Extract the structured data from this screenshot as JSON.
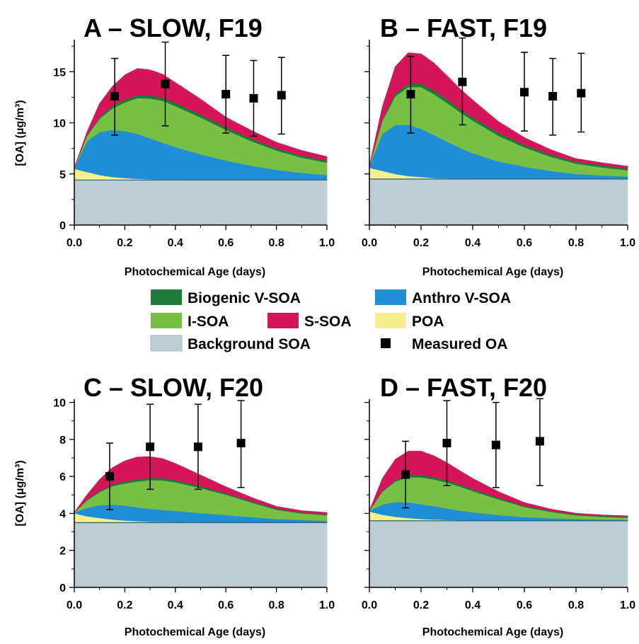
{
  "legend": {
    "items": [
      {
        "label": "Biogenic V-SOA",
        "color": "#1e7a3a",
        "kind": "patch"
      },
      {
        "label": "Anthro V-SOA",
        "color": "#1f8ed6",
        "kind": "patch"
      },
      {
        "label": "I-SOA",
        "color": "#77c043",
        "kind": "patch"
      },
      {
        "label": "S-SOA",
        "color": "#d5145a",
        "kind": "patch"
      },
      {
        "label": "POA",
        "color": "#f5ef8e",
        "kind": "patch"
      },
      {
        "label": "Background SOA",
        "color": "#bccdd6",
        "kind": "patch"
      },
      {
        "label": "Measured OA",
        "color": "#000000",
        "kind": "marker"
      }
    ]
  },
  "chart_data": [
    {
      "type": "area",
      "title": "A – SLOW, F19",
      "xlabel": "Photochemical Age (days)",
      "ylabel": "[OA] (μg/m³)",
      "xlim": [
        0,
        1.0
      ],
      "ylim": [
        0,
        18
      ],
      "x_ticks": [
        "0.0",
        "0.2",
        "0.4",
        "0.6",
        "0.8",
        "1.0"
      ],
      "y_ticks": [
        "0",
        "5",
        "10",
        "15"
      ],
      "stacking_order": [
        "Background SOA",
        "POA",
        "Anthro V-SOA",
        "I-SOA",
        "Biogenic V-SOA",
        "S-SOA"
      ],
      "x": [
        0,
        0.05,
        0.1,
        0.15,
        0.2,
        0.25,
        0.3,
        0.35,
        0.4,
        0.5,
        0.6,
        0.7,
        0.8,
        0.9,
        1.0
      ],
      "series": [
        {
          "name": "Background SOA",
          "values": [
            4.4,
            4.4,
            4.4,
            4.4,
            4.4,
            4.4,
            4.4,
            4.4,
            4.4,
            4.4,
            4.4,
            4.4,
            4.4,
            4.4,
            4.4
          ]
        },
        {
          "name": "POA",
          "values": [
            1.1,
            0.8,
            0.5,
            0.3,
            0.2,
            0.12,
            0.08,
            0.05,
            0.04,
            0.02,
            0.01,
            0.01,
            0,
            0,
            0
          ]
        },
        {
          "name": "Anthro V-SOA",
          "values": [
            0.1,
            3.0,
            4.2,
            4.6,
            4.6,
            4.4,
            4.0,
            3.6,
            3.2,
            2.5,
            1.9,
            1.4,
            1.0,
            0.7,
            0.5
          ]
        },
        {
          "name": "I-SOA",
          "values": [
            0,
            0.5,
            1.3,
            2.1,
            2.8,
            3.5,
            3.9,
            4.1,
            4.0,
            3.6,
            3.0,
            2.4,
            1.9,
            1.5,
            1.2
          ]
        },
        {
          "name": "Biogenic V-SOA",
          "values": [
            0,
            0.1,
            0.2,
            0.25,
            0.3,
            0.3,
            0.3,
            0.3,
            0.3,
            0.3,
            0.25,
            0.25,
            0.2,
            0.2,
            0.2
          ]
        },
        {
          "name": "S-SOA",
          "values": [
            0,
            0.3,
            1.3,
            1.9,
            2.4,
            2.6,
            2.5,
            2.3,
            2.0,
            1.5,
            1.0,
            0.8,
            0.6,
            0.5,
            0.4
          ]
        }
      ],
      "measured": {
        "name": "Measured OA",
        "x": [
          0.16,
          0.36,
          0.6,
          0.71,
          0.82
        ],
        "y": [
          12.6,
          13.8,
          12.8,
          12.4,
          12.7
        ],
        "err_low": [
          8.8,
          9.7,
          9.0,
          8.7,
          8.9
        ],
        "err_high": [
          16.3,
          17.9,
          16.6,
          16.1,
          16.4
        ]
      }
    },
    {
      "type": "area",
      "title": "B – FAST, F19",
      "xlabel": "Photochemical Age (days)",
      "ylabel": "",
      "xlim": [
        0,
        1.0
      ],
      "ylim": [
        0,
        18
      ],
      "x_ticks": [
        "0.0",
        "0.2",
        "0.4",
        "0.6",
        "0.8",
        "1.0"
      ],
      "y_ticks": [],
      "stacking_order": [
        "Background SOA",
        "POA",
        "Anthro V-SOA",
        "I-SOA",
        "Biogenic V-SOA",
        "S-SOA"
      ],
      "x": [
        0,
        0.05,
        0.1,
        0.15,
        0.2,
        0.25,
        0.3,
        0.35,
        0.4,
        0.5,
        0.6,
        0.7,
        0.8,
        0.9,
        1.0
      ],
      "series": [
        {
          "name": "Background SOA",
          "values": [
            4.5,
            4.5,
            4.5,
            4.5,
            4.5,
            4.5,
            4.5,
            4.5,
            4.5,
            4.5,
            4.5,
            4.5,
            4.5,
            4.5,
            4.5
          ]
        },
        {
          "name": "POA",
          "values": [
            1.1,
            0.8,
            0.5,
            0.3,
            0.2,
            0.1,
            0.07,
            0.05,
            0.03,
            0.02,
            0.01,
            0,
            0,
            0,
            0
          ]
        },
        {
          "name": "Anthro V-SOA",
          "values": [
            0.2,
            3.6,
            4.8,
            5.0,
            4.7,
            4.2,
            3.6,
            3.0,
            2.5,
            1.7,
            1.2,
            0.8,
            0.5,
            0.35,
            0.25
          ]
        },
        {
          "name": "I-SOA",
          "values": [
            0,
            1.3,
            2.8,
            3.7,
            4.1,
            4.0,
            3.8,
            3.5,
            3.2,
            2.5,
            1.9,
            1.4,
            1.0,
            0.8,
            0.6
          ]
        },
        {
          "name": "Biogenic V-SOA",
          "values": [
            0,
            0.2,
            0.3,
            0.35,
            0.35,
            0.35,
            0.35,
            0.3,
            0.3,
            0.3,
            0.25,
            0.2,
            0.2,
            0.2,
            0.2
          ]
        },
        {
          "name": "S-SOA",
          "values": [
            0,
            1.2,
            2.6,
            3.0,
            2.9,
            2.7,
            2.3,
            2.0,
            1.7,
            1.1,
            0.7,
            0.5,
            0.3,
            0.25,
            0.2
          ]
        }
      ],
      "measured": {
        "name": "Measured OA",
        "x": [
          0.16,
          0.36,
          0.6,
          0.71,
          0.82
        ],
        "y": [
          12.8,
          14.0,
          13.0,
          12.6,
          12.9
        ],
        "err_low": [
          9.0,
          9.8,
          9.2,
          8.8,
          9.1
        ],
        "err_high": [
          16.5,
          18.3,
          16.9,
          16.3,
          16.8
        ]
      }
    },
    {
      "type": "area",
      "title": "C – SLOW, F20",
      "xlabel": "Photochemical Age (days)",
      "ylabel": "[OA] (μg/m³)",
      "xlim": [
        0,
        1.0
      ],
      "ylim": [
        0,
        10.1
      ],
      "x_ticks": [
        "0.0",
        "0.2",
        "0.4",
        "0.6",
        "0.8",
        "1.0"
      ],
      "y_ticks": [
        "0",
        "2",
        "4",
        "6",
        "8",
        "10"
      ],
      "stacking_order": [
        "Background SOA",
        "POA",
        "Anthro V-SOA",
        "I-SOA",
        "Biogenic V-SOA",
        "S-SOA"
      ],
      "x": [
        0,
        0.05,
        0.1,
        0.15,
        0.2,
        0.25,
        0.3,
        0.35,
        0.4,
        0.5,
        0.6,
        0.7,
        0.8,
        0.9,
        1.0
      ],
      "series": [
        {
          "name": "Background SOA",
          "values": [
            3.5,
            3.5,
            3.5,
            3.5,
            3.5,
            3.5,
            3.5,
            3.5,
            3.5,
            3.5,
            3.5,
            3.5,
            3.5,
            3.5,
            3.5
          ]
        },
        {
          "name": "POA",
          "values": [
            0.5,
            0.35,
            0.25,
            0.17,
            0.12,
            0.08,
            0.05,
            0.04,
            0.03,
            0.02,
            0.01,
            0,
            0,
            0,
            0
          ]
        },
        {
          "name": "Anthro V-SOA",
          "values": [
            0.05,
            0.45,
            0.7,
            0.8,
            0.8,
            0.75,
            0.7,
            0.65,
            0.6,
            0.5,
            0.4,
            0.3,
            0.2,
            0.15,
            0.1
          ]
        },
        {
          "name": "I-SOA",
          "values": [
            0,
            0.4,
            0.7,
            1.0,
            1.2,
            1.4,
            1.55,
            1.6,
            1.55,
            1.35,
            1.1,
            0.8,
            0.5,
            0.35,
            0.3
          ]
        },
        {
          "name": "Biogenic V-SOA",
          "values": [
            0,
            0.05,
            0.08,
            0.1,
            0.12,
            0.12,
            0.12,
            0.12,
            0.12,
            0.1,
            0.08,
            0.07,
            0.06,
            0.05,
            0.05
          ]
        },
        {
          "name": "S-SOA",
          "values": [
            0,
            0.25,
            0.6,
            0.9,
            1.1,
            1.2,
            1.15,
            1.05,
            0.9,
            0.6,
            0.35,
            0.2,
            0.12,
            0.1,
            0.1
          ]
        }
      ],
      "measured": {
        "name": "Measured OA",
        "x": [
          0.14,
          0.3,
          0.49,
          0.66
        ],
        "y": [
          6.0,
          7.6,
          7.6,
          7.8
        ],
        "err_low": [
          4.2,
          5.3,
          5.3,
          5.4
        ],
        "err_high": [
          7.8,
          9.9,
          9.9,
          10.1
        ]
      }
    },
    {
      "type": "area",
      "title": "D – FAST, F20",
      "xlabel": "Photochemical Age (days)",
      "ylabel": "",
      "xlim": [
        0,
        1.0
      ],
      "ylim": [
        0,
        10.1
      ],
      "x_ticks": [
        "0.0",
        "0.2",
        "0.4",
        "0.6",
        "0.8",
        "1.0"
      ],
      "y_ticks": [],
      "stacking_order": [
        "Background SOA",
        "POA",
        "Anthro V-SOA",
        "I-SOA",
        "Biogenic V-SOA",
        "S-SOA"
      ],
      "x": [
        0,
        0.05,
        0.1,
        0.15,
        0.2,
        0.25,
        0.3,
        0.35,
        0.4,
        0.5,
        0.6,
        0.7,
        0.8,
        0.9,
        1.0
      ],
      "series": [
        {
          "name": "Background SOA",
          "values": [
            3.6,
            3.6,
            3.6,
            3.6,
            3.6,
            3.6,
            3.6,
            3.6,
            3.6,
            3.6,
            3.6,
            3.6,
            3.6,
            3.6,
            3.6
          ]
        },
        {
          "name": "POA",
          "values": [
            0.5,
            0.33,
            0.22,
            0.15,
            0.1,
            0.07,
            0.05,
            0.03,
            0.02,
            0.01,
            0,
            0,
            0,
            0,
            0
          ]
        },
        {
          "name": "Anthro V-SOA",
          "values": [
            0.05,
            0.55,
            0.8,
            0.85,
            0.8,
            0.72,
            0.62,
            0.52,
            0.44,
            0.3,
            0.2,
            0.14,
            0.1,
            0.07,
            0.05
          ]
        },
        {
          "name": "I-SOA",
          "values": [
            0,
            0.7,
            1.1,
            1.35,
            1.45,
            1.45,
            1.4,
            1.3,
            1.15,
            0.85,
            0.55,
            0.35,
            0.2,
            0.15,
            0.12
          ]
        },
        {
          "name": "Biogenic V-SOA",
          "values": [
            0,
            0.06,
            0.1,
            0.12,
            0.12,
            0.12,
            0.12,
            0.11,
            0.1,
            0.08,
            0.06,
            0.05,
            0.05,
            0.05,
            0.05
          ]
        },
        {
          "name": "S-SOA",
          "values": [
            0,
            0.65,
            1.1,
            1.3,
            1.3,
            1.15,
            0.95,
            0.75,
            0.58,
            0.33,
            0.18,
            0.1,
            0.06,
            0.05,
            0.05
          ]
        }
      ],
      "measured": {
        "name": "Measured OA",
        "x": [
          0.14,
          0.3,
          0.49,
          0.66
        ],
        "y": [
          6.1,
          7.8,
          7.7,
          7.9
        ],
        "err_low": [
          4.3,
          5.5,
          5.4,
          5.5
        ],
        "err_high": [
          7.9,
          10.1,
          10.0,
          10.2
        ]
      }
    }
  ]
}
